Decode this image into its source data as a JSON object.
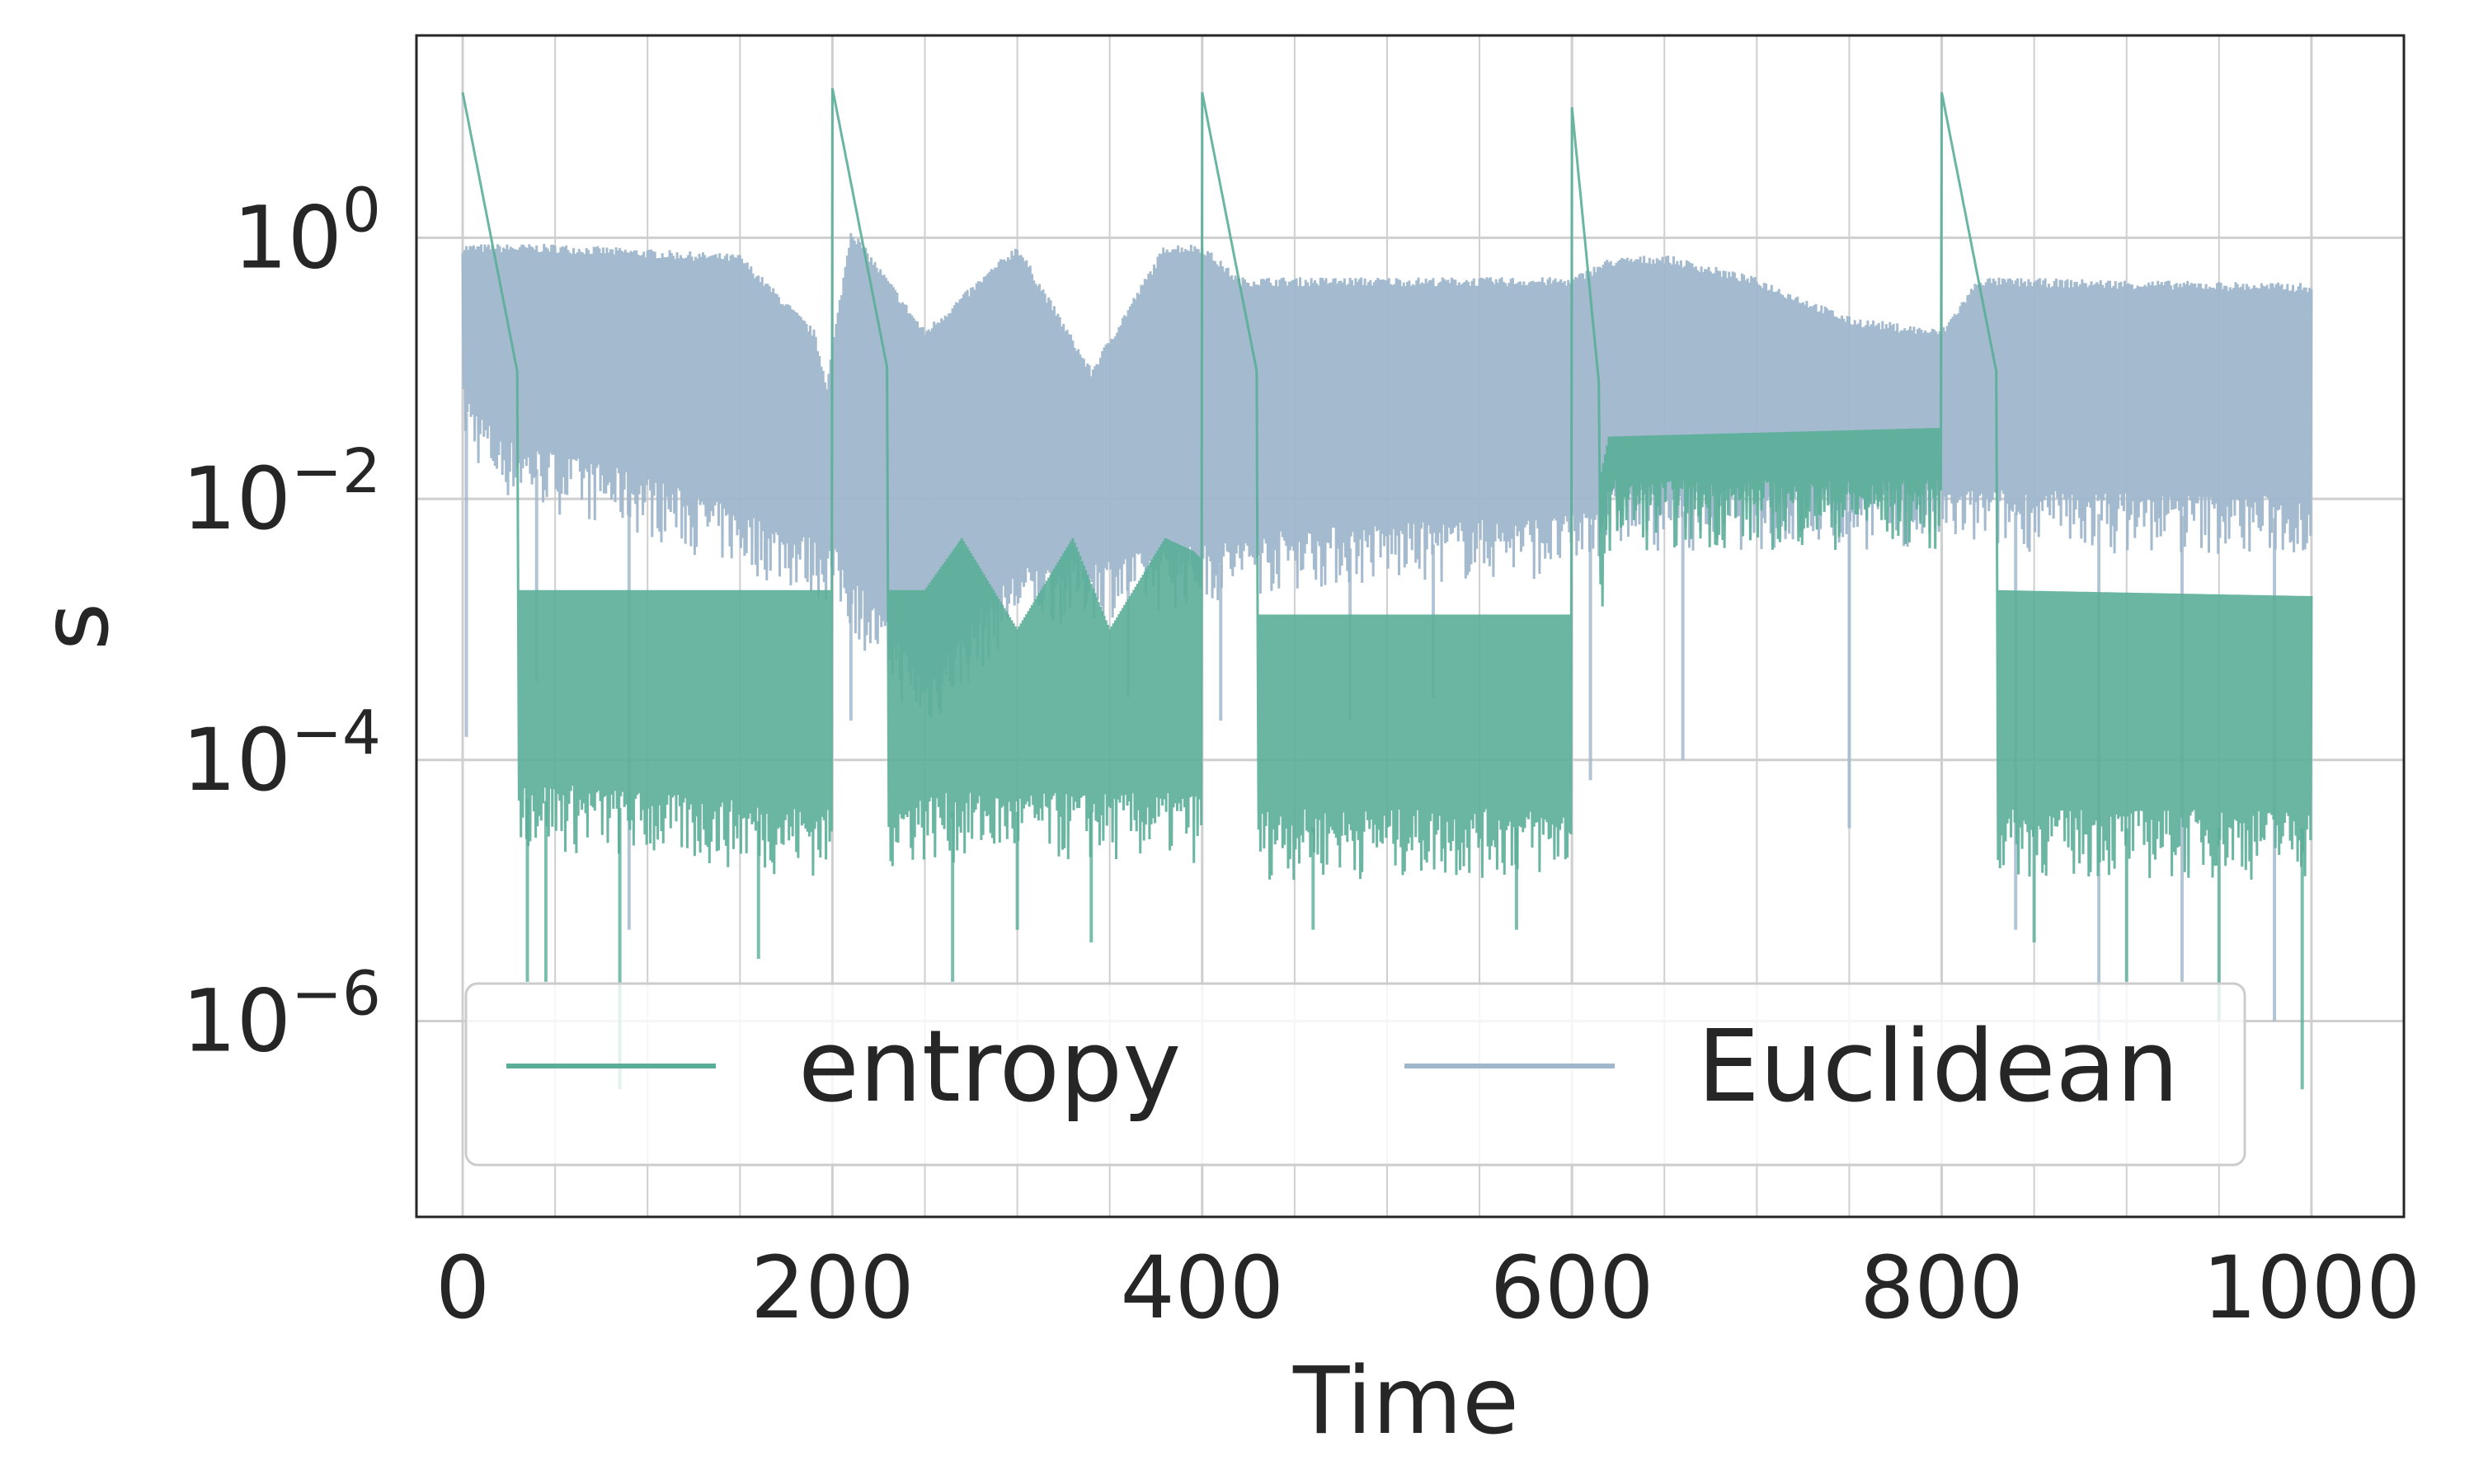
{
  "chart_data": {
    "type": "line",
    "xlabel": "Time",
    "ylabel": "s",
    "xlim": [
      -25,
      1050
    ],
    "ylim_log10": [
      -7.5,
      1.55
    ],
    "yscale": "log",
    "grid": true,
    "legend_position": "lower center",
    "x_ticks": [
      0,
      200,
      400,
      600,
      800,
      1000
    ],
    "x_tick_labels": [
      "0",
      "200",
      "400",
      "600",
      "800",
      "1000"
    ],
    "y_ticks_log10": [
      0,
      -2,
      -4,
      -6
    ],
    "y_tick_labels": [
      {
        "base": "10",
        "exp": "0"
      },
      {
        "base": "10",
        "exp": "−2"
      },
      {
        "base": "10",
        "exp": "−4"
      },
      {
        "base": "10",
        "exp": "−6"
      }
    ],
    "series": [
      {
        "name": "Euclidean",
        "color": "#9fb6cb",
        "envelope_top": [
          [
            0,
            0.9
          ],
          [
            50,
            0.9
          ],
          [
            150,
            0.75
          ],
          [
            190,
            0.2
          ],
          [
            197,
            0.08
          ],
          [
            210,
            1.2
          ],
          [
            250,
            0.2
          ],
          [
            300,
            0.9
          ],
          [
            340,
            0.1
          ],
          [
            380,
            0.9
          ],
          [
            400,
            0.9
          ],
          [
            420,
            0.5
          ],
          [
            600,
            0.5
          ],
          [
            620,
            0.7
          ],
          [
            650,
            0.75
          ],
          [
            700,
            0.5
          ],
          [
            750,
            0.25
          ],
          [
            800,
            0.2
          ],
          [
            820,
            0.5
          ],
          [
            1000,
            0.45
          ]
        ],
        "envelope_bottom": [
          [
            0,
            0.05
          ],
          [
            20,
            0.02
          ],
          [
            100,
            0.01
          ],
          [
            200,
            0.003
          ],
          [
            250,
            0.0003
          ],
          [
            300,
            0.002
          ],
          [
            400,
            0.003
          ],
          [
            450,
            0.004
          ],
          [
            600,
            0.005
          ],
          [
            620,
            0.008
          ],
          [
            800,
            0.008
          ],
          [
            820,
            0.008
          ],
          [
            1000,
            0.007
          ]
        ],
        "spikes_down": [
          [
            2,
            0.00015
          ],
          [
            40,
            0.0004
          ],
          [
            90,
            5e-06
          ],
          [
            210,
            0.0002
          ],
          [
            360,
            0.0003
          ],
          [
            410,
            0.0002
          ],
          [
            480,
            0.0002
          ],
          [
            525,
            0.0003
          ],
          [
            610,
            7e-05
          ],
          [
            660,
            0.0001
          ],
          [
            750,
            3e-05
          ],
          [
            840,
            5e-06
          ],
          [
            885,
            7e-07
          ],
          [
            930,
            2e-06
          ],
          [
            980,
            1e-06
          ]
        ]
      },
      {
        "name": "entropy",
        "color": "#5aae98",
        "peaks": [
          [
            0,
            13
          ],
          [
            200,
            14
          ],
          [
            400,
            13
          ],
          [
            600,
            10
          ],
          [
            800,
            13
          ]
        ],
        "plateau_top": [
          [
            35,
            0.002
          ],
          [
            200,
            0.002
          ],
          [
            250,
            0.002
          ],
          [
            270,
            0.005
          ],
          [
            300,
            0.001
          ],
          [
            330,
            0.005
          ],
          [
            350,
            0.001
          ],
          [
            380,
            0.005
          ],
          [
            395,
            0.004
          ],
          [
            430,
            0.0013
          ],
          [
            600,
            0.0013
          ],
          [
            620,
            0.03
          ],
          [
            800,
            0.035
          ],
          [
            830,
            0.002
          ],
          [
            1000,
            0.0018
          ]
        ],
        "plateau_bottom": [
          [
            35,
            5e-05
          ],
          [
            200,
            3e-05
          ],
          [
            250,
            4e-05
          ],
          [
            400,
            4e-05
          ],
          [
            430,
            3e-05
          ],
          [
            600,
            3e-05
          ],
          [
            620,
            0.01
          ],
          [
            800,
            0.01
          ],
          [
            830,
            3e-05
          ],
          [
            1000,
            3e-05
          ]
        ],
        "spikes_down": [
          [
            35,
            2e-06
          ],
          [
            45,
            2e-06
          ],
          [
            85,
            3e-07
          ],
          [
            160,
            3e-06
          ],
          [
            265,
            2e-06
          ],
          [
            300,
            5e-06
          ],
          [
            340,
            4e-06
          ],
          [
            460,
            5e-06
          ],
          [
            570,
            5e-06
          ],
          [
            850,
            4e-06
          ],
          [
            900,
            2e-06
          ],
          [
            950,
            1e-06
          ],
          [
            995,
            3e-07
          ]
        ]
      }
    ]
  }
}
